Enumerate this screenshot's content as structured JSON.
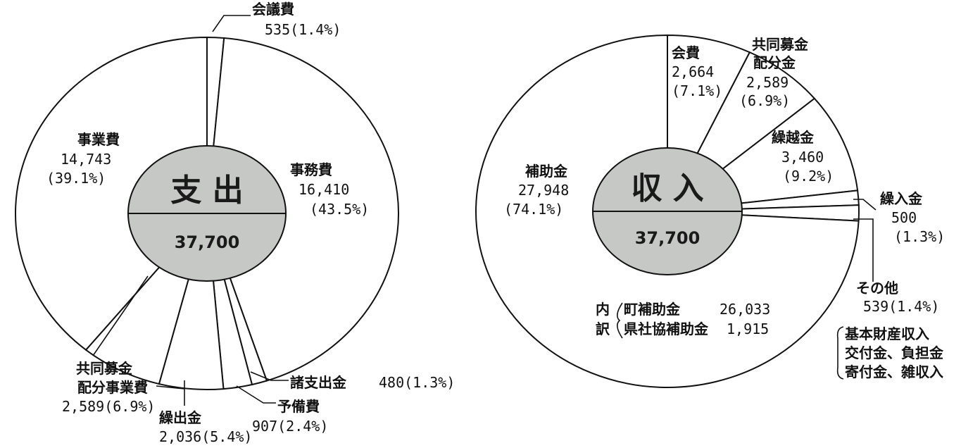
{
  "chart_data": [
    {
      "type": "pie",
      "center_title": "支 出",
      "total": "37,700",
      "slices": [
        {
          "name": "会議費",
          "value": "535",
          "pct": "(1.4%)",
          "amount": 535,
          "percent": 1.4
        },
        {
          "name": "事務費",
          "value": "16,410",
          "pct": "(43.5%)",
          "amount": 16410,
          "percent": 43.5
        },
        {
          "name": "諸支出金",
          "value": "480",
          "pct": "(1.3%)",
          "amount": 480,
          "percent": 1.3
        },
        {
          "name": "予備費",
          "value": "907",
          "pct": "(2.4%)",
          "amount": 907,
          "percent": 2.4
        },
        {
          "name": "繰出金",
          "value": "2,036",
          "pct": "(5.4%)",
          "amount": 2036,
          "percent": 5.4
        },
        {
          "name": "共同募金",
          "name2": "配分事業費",
          "value": "2,589",
          "pct": "(6.9%)",
          "amount": 2589,
          "percent": 6.9
        },
        {
          "name": "事業費",
          "value": "14,743",
          "pct": "(39.1%)",
          "amount": 14743,
          "percent": 39.1
        }
      ]
    },
    {
      "type": "pie",
      "center_title": "収 入",
      "total": "37,700",
      "slices": [
        {
          "name": "会費",
          "value": "2,664",
          "pct": "(7.1%)",
          "amount": 2664,
          "percent": 7.1
        },
        {
          "name": "共同募金",
          "name2": "配分金",
          "value": "2,589",
          "pct": "(6.9%)",
          "amount": 2589,
          "percent": 6.9
        },
        {
          "name": "繰越金",
          "value": "3,460",
          "pct": "(9.2%)",
          "amount": 3460,
          "percent": 9.2
        },
        {
          "name": "繰入金",
          "value": "500",
          "pct": "(1.3%)",
          "amount": 500,
          "percent": 1.3
        },
        {
          "name": "その他",
          "value": "539",
          "pct": "(1.4%)",
          "amount": 539,
          "percent": 1.4
        },
        {
          "name": "補助金",
          "value": "27,948",
          "pct": "(74.1%)",
          "amount": 27948,
          "percent": 74.1
        }
      ],
      "breakdown": {
        "title_top": "内",
        "title_bottom": "訳",
        "rows": [
          {
            "name": "町補助金",
            "value": "26,033"
          },
          {
            "name": "県社協補助金",
            "value": "1,915"
          }
        ]
      },
      "other_note": [
        "基本財産収入",
        "交付金、負担金",
        "寄付金、雑収入"
      ]
    }
  ]
}
